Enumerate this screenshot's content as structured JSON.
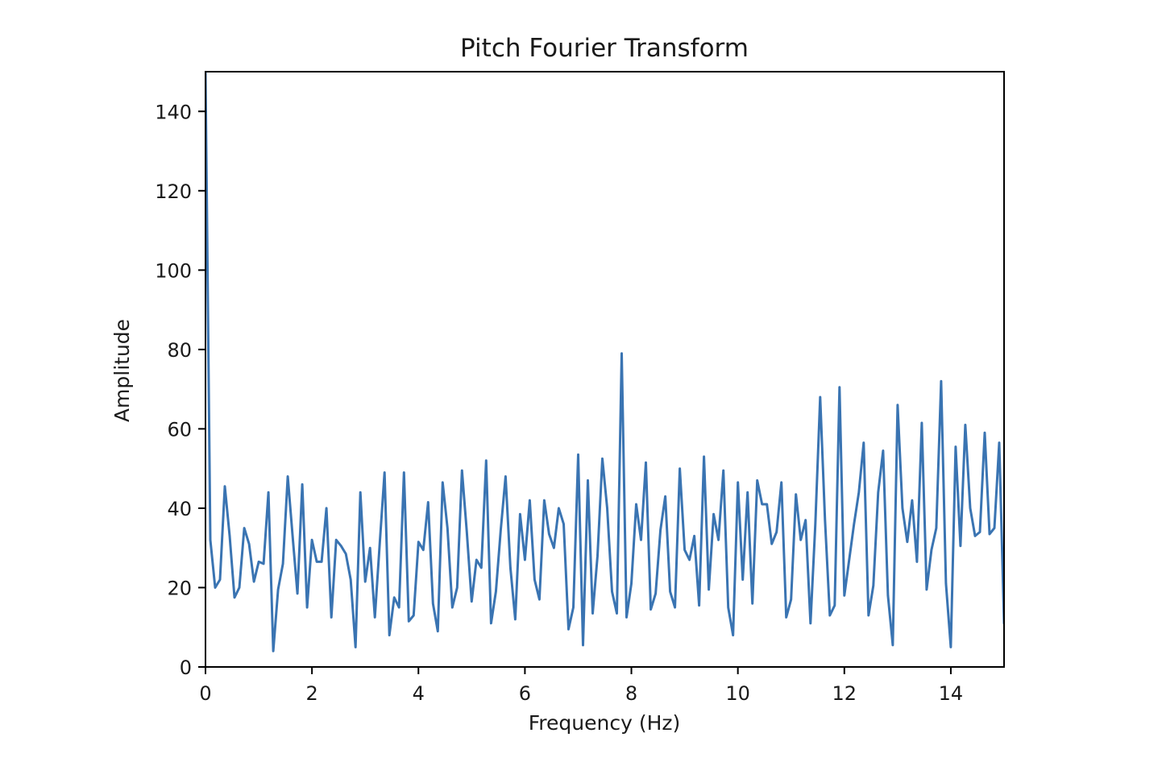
{
  "chart_data": {
    "type": "line",
    "title": "Pitch Fourier Transform",
    "xlabel": "Frequency (Hz)",
    "ylabel": "Amplitude",
    "xlim": [
      0,
      15
    ],
    "ylim": [
      0,
      150
    ],
    "xticks": [
      0,
      2,
      4,
      6,
      8,
      10,
      12,
      14
    ],
    "yticks": [
      0,
      20,
      40,
      60,
      80,
      100,
      120,
      140
    ],
    "grid": false,
    "series": [
      {
        "color": "#3a74b2",
        "x": [
          0.0,
          0.0909,
          0.1818,
          0.2727,
          0.3636,
          0.4545,
          0.5455,
          0.6364,
          0.7273,
          0.8182,
          0.9091,
          1.0,
          1.0909,
          1.1818,
          1.2727,
          1.3636,
          1.4545,
          1.5455,
          1.6364,
          1.7273,
          1.8182,
          1.9091,
          2.0,
          2.0909,
          2.1818,
          2.2727,
          2.3636,
          2.4545,
          2.5455,
          2.6364,
          2.7273,
          2.8182,
          2.9091,
          3.0,
          3.0909,
          3.1818,
          3.2727,
          3.3636,
          3.4545,
          3.5455,
          3.6364,
          3.7273,
          3.8182,
          3.9091,
          4.0,
          4.0909,
          4.1818,
          4.2727,
          4.3636,
          4.4545,
          4.5455,
          4.6364,
          4.7273,
          4.8182,
          4.9091,
          5.0,
          5.0909,
          5.1818,
          5.2727,
          5.3636,
          5.4545,
          5.5455,
          5.6364,
          5.7273,
          5.8182,
          5.9091,
          6.0,
          6.0909,
          6.1818,
          6.2727,
          6.3636,
          6.4545,
          6.5455,
          6.6364,
          6.7273,
          6.8182,
          6.9091,
          7.0,
          7.0909,
          7.1818,
          7.2727,
          7.3636,
          7.4545,
          7.5455,
          7.6364,
          7.7273,
          7.8182,
          7.9091,
          8.0,
          8.0909,
          8.1818,
          8.2727,
          8.3636,
          8.4545,
          8.5455,
          8.6364,
          8.7273,
          8.8182,
          8.9091,
          9.0,
          9.0909,
          9.1818,
          9.2727,
          9.3636,
          9.4545,
          9.5455,
          9.6364,
          9.7273,
          9.8182,
          9.9091,
          10.0,
          10.0909,
          10.1818,
          10.2727,
          10.3636,
          10.4545,
          10.5455,
          10.6364,
          10.7273,
          10.8182,
          10.9091,
          11.0,
          11.0909,
          11.1818,
          11.2727,
          11.3636,
          11.4545,
          11.5455,
          11.6364,
          11.7273,
          11.8182,
          11.9091,
          12.0,
          12.0909,
          12.1818,
          12.2727,
          12.3636,
          12.4545,
          12.5455,
          12.6364,
          12.7273,
          12.8182,
          12.9091,
          13.0,
          13.0909,
          13.1818,
          13.2727,
          13.3636,
          13.4545,
          13.5455,
          13.6364,
          13.7273,
          13.8182,
          13.9091,
          14.0,
          14.0909,
          14.1818,
          14.2727,
          14.3636,
          14.4545,
          14.5455,
          14.6364,
          14.7273,
          14.8182,
          14.9091,
          15.0
        ],
        "y": [
          150,
          32,
          20,
          22,
          45.5,
          33,
          17.5,
          20,
          35,
          31,
          21.5,
          26.5,
          26,
          44,
          4,
          19.5,
          26,
          48,
          33,
          18.5,
          46,
          15,
          32,
          26.5,
          26.5,
          40,
          12.5,
          32,
          30.5,
          28.5,
          22,
          5,
          44,
          21.5,
          30,
          12.5,
          31,
          49,
          8,
          17.5,
          15,
          49,
          11.5,
          13,
          31.5,
          29.5,
          41.5,
          16,
          9,
          46.5,
          35,
          15,
          20,
          49.5,
          34,
          16.5,
          27,
          25,
          52,
          11,
          19,
          34.5,
          48,
          25,
          12,
          38.5,
          27,
          42,
          22,
          17,
          42,
          33.5,
          30,
          40,
          36,
          9.5,
          15,
          53.5,
          5.5,
          47,
          13.5,
          28,
          52.5,
          40,
          19,
          13.5,
          79,
          12.5,
          21,
          41,
          32,
          51.5,
          14.5,
          18.5,
          34.5,
          43,
          19,
          15,
          50,
          29.5,
          27,
          33,
          15.5,
          53,
          19.5,
          38.5,
          32,
          49.5,
          15,
          8,
          46.5,
          22,
          44,
          16,
          47,
          41,
          41,
          31,
          34,
          46.5,
          12.5,
          17,
          43.5,
          32,
          37,
          11,
          36,
          68,
          37,
          13,
          15.5,
          70.5,
          18,
          27,
          36,
          44,
          56.5,
          13,
          20.5,
          44,
          54.5,
          18,
          5.5,
          66,
          40,
          31.5,
          42,
          26.5,
          61.5,
          19.5,
          29.5,
          35,
          72,
          21,
          5,
          55.5,
          30.5,
          61,
          40,
          33,
          34,
          59,
          33.5,
          35,
          56.5,
          11
        ]
      }
    ]
  }
}
